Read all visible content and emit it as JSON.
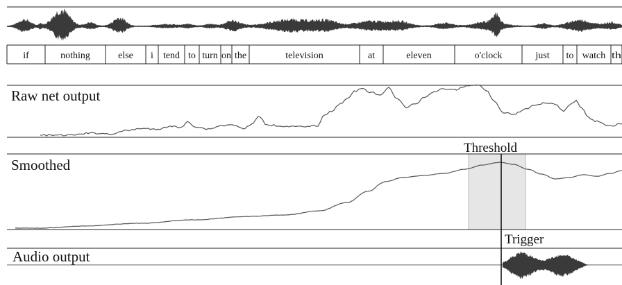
{
  "words": [
    "if",
    "nothing",
    "else",
    "i",
    "tend",
    "to",
    "turn",
    "on",
    "the",
    "television",
    "at",
    "eleven",
    "o'clock",
    "just",
    "to",
    "watch",
    "th"
  ],
  "panels": {
    "raw": "Raw net output",
    "smoothed": "Smoothed",
    "audio": "Audio output"
  },
  "annotations": {
    "threshold": "Threshold",
    "trigger": "Trigger"
  },
  "colors": {
    "waveform": "#3a3a3a",
    "curve": "#555555",
    "threshold_band": "#e6e6e6",
    "line": "#222222"
  }
}
